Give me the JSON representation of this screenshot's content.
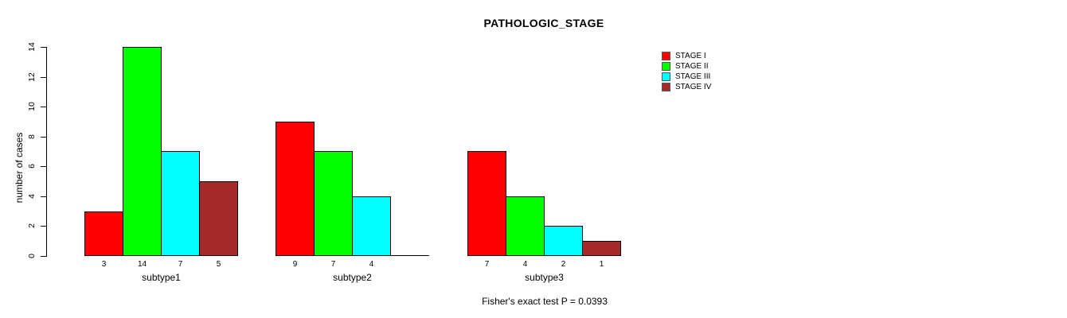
{
  "title": "PATHOLOGIC_STAGE",
  "y_axis_label": "number of cases",
  "footnote": "Fisher's exact test P = 0.0393",
  "legend": {
    "entries": [
      {
        "label": "STAGE I",
        "color": "#FF0000"
      },
      {
        "label": "STAGE II",
        "color": "#00FF00"
      },
      {
        "label": "STAGE III",
        "color": "#00FFFF"
      },
      {
        "label": "STAGE IV",
        "color": "#A52A2A"
      }
    ]
  },
  "chart_data": {
    "type": "bar",
    "title": "PATHOLOGIC_STAGE",
    "xlabel": "",
    "ylabel": "number of cases",
    "ylim": [
      0,
      14
    ],
    "yticks": [
      0,
      2,
      4,
      6,
      8,
      10,
      12,
      14
    ],
    "grid": false,
    "legend_position": "top-right",
    "categories": [
      "subtype1",
      "subtype2",
      "subtype3"
    ],
    "series": [
      {
        "name": "STAGE I",
        "color": "#FF0000",
        "values": [
          3,
          9,
          7
        ]
      },
      {
        "name": "STAGE II",
        "color": "#00FF00",
        "values": [
          14,
          7,
          4
        ]
      },
      {
        "name": "STAGE III",
        "color": "#00FFFF",
        "values": [
          7,
          4,
          2
        ]
      },
      {
        "name": "STAGE IV",
        "color": "#A52A2A",
        "values": [
          5,
          0,
          1
        ]
      }
    ],
    "bar_labels": [
      [
        "3",
        "14",
        "7",
        "5"
      ],
      [
        "9",
        "7",
        "4",
        ""
      ],
      [
        "7",
        "4",
        "2",
        "1"
      ]
    ],
    "annotation": "Fisher's exact test P = 0.0393"
  }
}
